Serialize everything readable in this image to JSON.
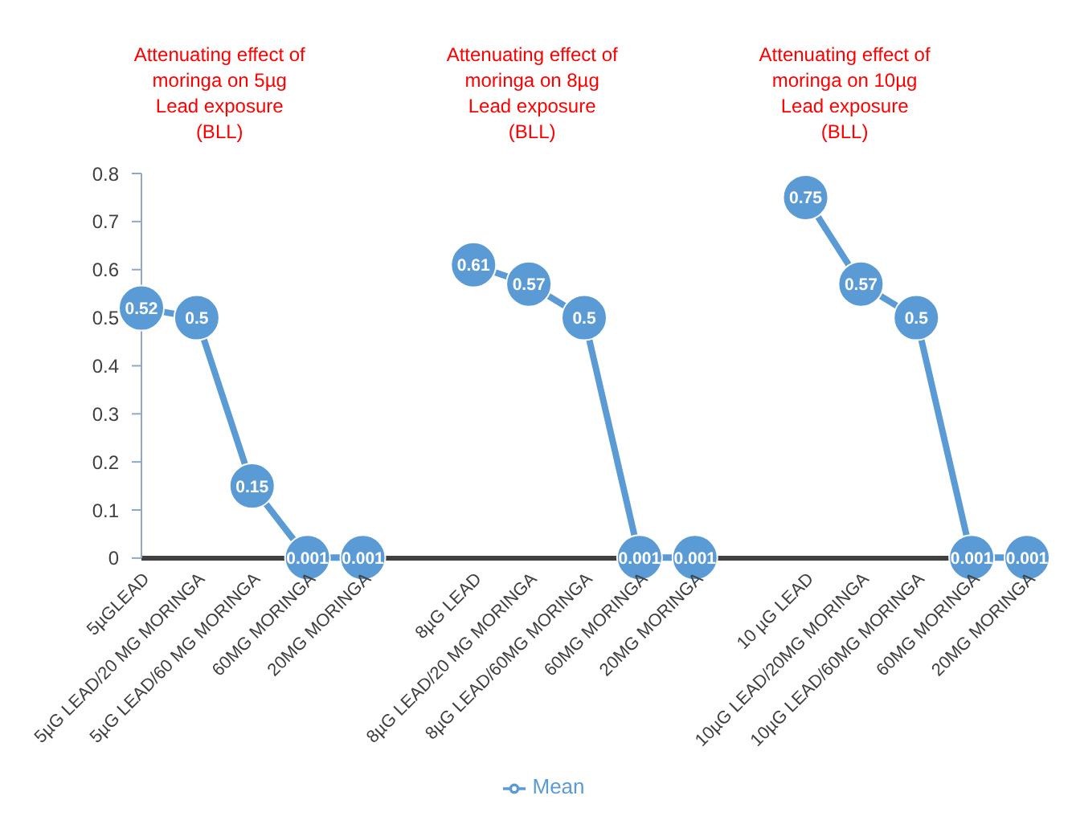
{
  "chart_data": {
    "type": "line",
    "categories": [
      "5µGLEAD",
      "5µG LEAD/20 MG MORINGA",
      "5µG LEAD/60 MG MORINGA",
      "60MG MORINGA",
      "20MG MORINGA",
      null,
      "8µG LEAD",
      "8µG LEAD/20 MG MORINGA",
      "8µG LEAD/60MG MORINGA",
      "60MG MORINGA",
      "20MG MORINGA",
      null,
      "10 µG LEAD",
      "10µG LEAD/20MG MORINGA",
      "10µG LEAD/60MG MORINGA",
      "60MG MORINGA",
      "20MG MORINGA"
    ],
    "series": [
      {
        "name": "Mean",
        "color": "#5b9bd5",
        "values": [
          0.52,
          0.5,
          0.15,
          0.001,
          0.001,
          null,
          0.61,
          0.57,
          0.5,
          0.001,
          0.001,
          null,
          0.75,
          0.57,
          0.5,
          0.001,
          0.001
        ]
      }
    ],
    "ylim": [
      0,
      0.8
    ],
    "yticks": [
      0,
      0.1,
      0.2,
      0.3,
      0.4,
      0.5,
      0.6,
      0.7,
      0.8
    ],
    "annotations": [
      "Attenuating effect of moringa on 5µg Lead exposure (BLL)",
      "Attenuating effect of moringa on 8µg Lead exposure (BLL)",
      "Attenuating effect of moringa on 10µg Lead exposure (BLL)"
    ],
    "data_labels": true,
    "marker": "circle",
    "line_style": "solid",
    "legend": "bottom",
    "grid": false
  }
}
